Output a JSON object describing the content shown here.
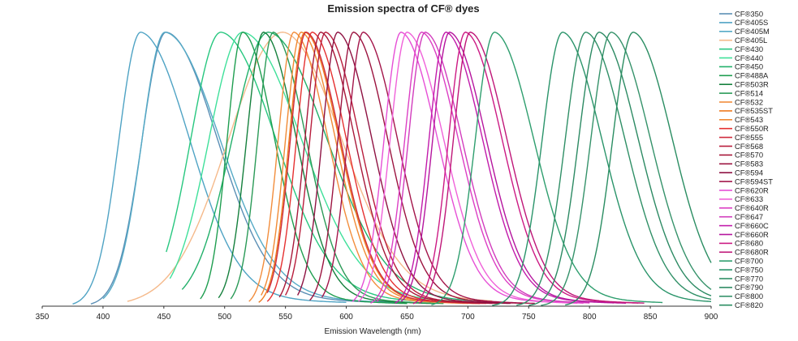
{
  "chart_data": {
    "type": "line",
    "title": "Emission spectra of CF® dyes",
    "xlabel": "Emission Wavelength (nm)",
    "ylabel": "",
    "xlim": [
      350,
      900
    ],
    "ylim": [
      0,
      1
    ],
    "x_ticks": [
      350,
      400,
      450,
      500,
      550,
      600,
      650,
      700,
      750,
      800,
      850,
      900
    ],
    "grid": false,
    "legend_position": "right",
    "series": [
      {
        "name": "CF®350",
        "color": "#5b8fb5",
        "peak": 452,
        "left_width": 20,
        "right_width": 42,
        "range": [
          390,
          620
        ]
      },
      {
        "name": "CF®405S",
        "color": "#4fa3c4",
        "peak": 431,
        "left_width": 18,
        "right_width": 40,
        "range": [
          375,
          600
        ]
      },
      {
        "name": "CF®405M",
        "color": "#55aac6",
        "peak": 451,
        "left_width": 19,
        "right_width": 45,
        "range": [
          400,
          640
        ]
      },
      {
        "name": "CF®405L",
        "color": "#f5b98a",
        "peak": 548,
        "left_width": 45,
        "right_width": 48,
        "range": [
          420,
          720
        ]
      },
      {
        "name": "CF®430",
        "color": "#27c77f",
        "peak": 497,
        "left_width": 25,
        "right_width": 45,
        "range": [
          452,
          680
        ]
      },
      {
        "name": "CF®440",
        "color": "#3fe09a",
        "peak": 515,
        "left_width": 28,
        "right_width": 48,
        "range": [
          455,
          700
        ]
      },
      {
        "name": "CF®450",
        "color": "#22b06a",
        "peak": 536,
        "left_width": 30,
        "right_width": 48,
        "range": [
          465,
          720
        ]
      },
      {
        "name": "CF®488A",
        "color": "#1f9e50",
        "peak": 515,
        "left_width": 13,
        "right_width": 26,
        "range": [
          480,
          650
        ]
      },
      {
        "name": "CF®503R",
        "color": "#15803d",
        "peak": 532,
        "left_width": 14,
        "right_width": 27,
        "range": [
          495,
          670
        ]
      },
      {
        "name": "CF®514",
        "color": "#2a9a57",
        "peak": 540,
        "left_width": 13,
        "right_width": 27,
        "range": [
          505,
          680
        ]
      },
      {
        "name": "CF®532",
        "color": "#f28d3c",
        "peak": 557,
        "left_width": 13,
        "right_width": 28,
        "range": [
          520,
          700
        ]
      },
      {
        "name": "CF®535ST",
        "color": "#ee7a1e",
        "peak": 566,
        "left_width": 13,
        "right_width": 28,
        "range": [
          528,
          710
        ]
      },
      {
        "name": "CF®543",
        "color": "#f08a34",
        "peak": 563,
        "left_width": 13,
        "right_width": 28,
        "range": [
          530,
          705
        ]
      },
      {
        "name": "CF®550R",
        "color": "#e53030",
        "peak": 572,
        "left_width": 13,
        "right_width": 28,
        "range": [
          535,
          715
        ]
      },
      {
        "name": "CF®555",
        "color": "#cf2a3b",
        "peak": 567,
        "left_width": 13,
        "right_width": 28,
        "range": [
          535,
          710
        ]
      },
      {
        "name": "CF®568",
        "color": "#b81d3c",
        "peak": 583,
        "left_width": 13,
        "right_width": 28,
        "range": [
          550,
          725
        ]
      },
      {
        "name": "CF®570",
        "color": "#a8183a",
        "peak": 579,
        "left_width": 13,
        "right_width": 28,
        "range": [
          545,
          720
        ]
      },
      {
        "name": "CF®583",
        "color": "#9c1440",
        "peak": 606,
        "left_width": 13,
        "right_width": 28,
        "range": [
          570,
          745
        ]
      },
      {
        "name": "CF®594",
        "color": "#8e1242",
        "peak": 593,
        "left_width": 13,
        "right_width": 28,
        "range": [
          560,
          735
        ]
      },
      {
        "name": "CF®594ST",
        "color": "#a3154a",
        "peak": 614,
        "left_width": 13,
        "right_width": 28,
        "range": [
          580,
          755
        ]
      },
      {
        "name": "CF®620R",
        "color": "#e64fd6",
        "peak": 645,
        "left_width": 14,
        "right_width": 30,
        "range": [
          605,
          790
        ]
      },
      {
        "name": "CF®633",
        "color": "#f061d9",
        "peak": 650,
        "left_width": 14,
        "right_width": 30,
        "range": [
          610,
          795
        ]
      },
      {
        "name": "CF®640R",
        "color": "#dc3fc4",
        "peak": 662,
        "left_width": 14,
        "right_width": 30,
        "range": [
          620,
          800
        ]
      },
      {
        "name": "CF®647",
        "color": "#d23cbd",
        "peak": 665,
        "left_width": 14,
        "right_width": 30,
        "range": [
          625,
          800
        ]
      },
      {
        "name": "CF®660C",
        "color": "#c21bab",
        "peak": 682,
        "left_width": 14,
        "right_width": 30,
        "range": [
          640,
          820
        ]
      },
      {
        "name": "CF®660R",
        "color": "#b5159e",
        "peak": 685,
        "left_width": 14,
        "right_width": 30,
        "range": [
          645,
          830
        ]
      },
      {
        "name": "CF®680",
        "color": "#cc1a84",
        "peak": 698,
        "left_width": 14,
        "right_width": 30,
        "range": [
          655,
          840
        ]
      },
      {
        "name": "CF®680R",
        "color": "#bf1678",
        "peak": 702,
        "left_width": 14,
        "right_width": 30,
        "range": [
          660,
          845
        ]
      },
      {
        "name": "CF®700",
        "color": "#2e9e6e",
        "peak": 722,
        "left_width": 16,
        "right_width": 32,
        "range": [
          670,
          860
        ]
      },
      {
        "name": "CF®750",
        "color": "#2a946a",
        "peak": 778,
        "left_width": 17,
        "right_width": 32,
        "range": [
          720,
          900
        ]
      },
      {
        "name": "CF®770",
        "color": "#2f8f66",
        "peak": 797,
        "left_width": 17,
        "right_width": 32,
        "range": [
          740,
          900
        ]
      },
      {
        "name": "CF®790",
        "color": "#2c8a63",
        "peak": 808,
        "left_width": 17,
        "right_width": 32,
        "range": [
          750,
          900
        ]
      },
      {
        "name": "CF®800",
        "color": "#35926a",
        "peak": 818,
        "left_width": 17,
        "right_width": 32,
        "range": [
          760,
          900
        ]
      },
      {
        "name": "CF®820",
        "color": "#2a8d62",
        "peak": 836,
        "left_width": 17,
        "right_width": 32,
        "range": [
          780,
          900
        ]
      }
    ]
  }
}
